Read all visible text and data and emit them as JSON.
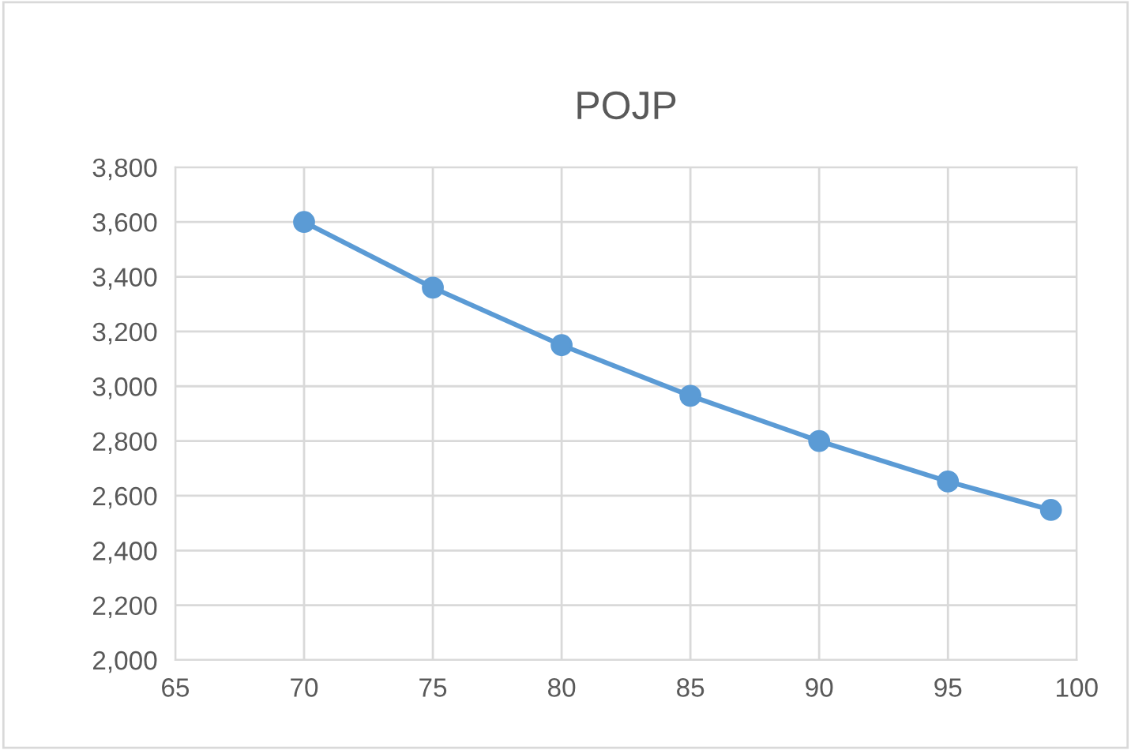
{
  "chart_data": {
    "type": "line",
    "title": "POJP",
    "x": [
      70,
      75,
      80,
      85,
      90,
      95,
      99
    ],
    "series": [
      {
        "color": "#5b9bd5",
        "values": [
          3600,
          3360,
          3150,
          2965,
          2800,
          2652,
          2548
        ]
      }
    ],
    "xlim": [
      65,
      100
    ],
    "xticks": [
      65,
      70,
      75,
      80,
      85,
      90,
      95,
      100
    ],
    "ylim": [
      2000,
      3800
    ],
    "yticks": [
      {
        "value": 2000,
        "label": "2,000"
      },
      {
        "value": 2200,
        "label": "2,200"
      },
      {
        "value": 2400,
        "label": "2,400"
      },
      {
        "value": 2600,
        "label": "2,600"
      },
      {
        "value": 2800,
        "label": "2,800"
      },
      {
        "value": 3000,
        "label": "3,000"
      },
      {
        "value": 3200,
        "label": "3,200"
      },
      {
        "value": 3400,
        "label": "3,400"
      },
      {
        "value": 3600,
        "label": "3,600"
      },
      {
        "value": 3800,
        "label": "3,800"
      }
    ],
    "grid": true,
    "marker": "circle",
    "line_style": "solid",
    "legend": false
  }
}
